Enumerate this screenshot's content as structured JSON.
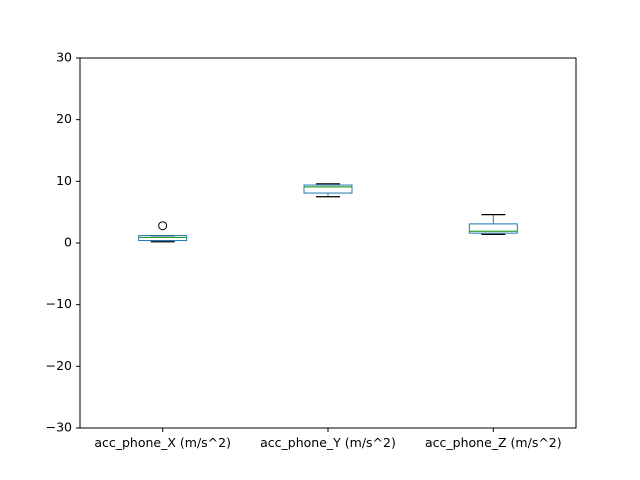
{
  "chart_data": {
    "type": "box",
    "categories": [
      "acc_phone_X (m/s^2)",
      "acc_phone_Y (m/s^2)",
      "acc_phone_Z (m/s^2)"
    ],
    "boxes": [
      {
        "whisker_low": 0.2,
        "q1": 0.4,
        "median": 0.9,
        "q3": 1.2,
        "whisker_high": 1.2,
        "outliers": [
          2.8
        ]
      },
      {
        "whisker_low": 7.5,
        "q1": 8.1,
        "median": 9.1,
        "q3": 9.4,
        "whisker_high": 9.6,
        "outliers": []
      },
      {
        "whisker_low": 1.4,
        "q1": 1.6,
        "median": 1.9,
        "q3": 3.1,
        "whisker_high": 4.6,
        "outliers": []
      }
    ],
    "yticks": [
      -30,
      -20,
      -10,
      0,
      10,
      20,
      30
    ],
    "ylim": [
      -30,
      30
    ],
    "title": "",
    "xlabel": "",
    "ylabel": "",
    "grid": false,
    "colors": {
      "box": "#1f77b4",
      "median": "#2ca02c",
      "whisker": "#000000",
      "axis": "#000000"
    }
  }
}
